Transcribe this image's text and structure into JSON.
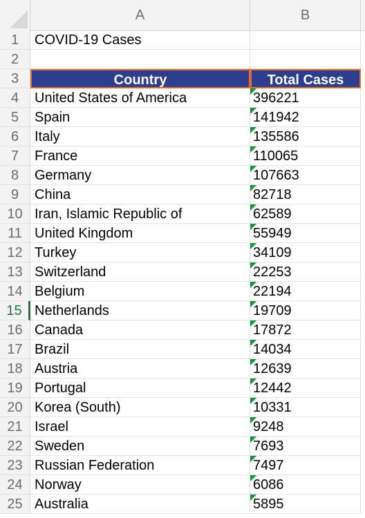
{
  "columns": [
    "A",
    "B"
  ],
  "rows": [
    {
      "num": "1",
      "a": "COVID-19 Cases",
      "b": ""
    },
    {
      "num": "2",
      "a": "",
      "b": ""
    },
    {
      "num": "3",
      "a": "Country",
      "b": "Total Cases",
      "header": true
    },
    {
      "num": "4",
      "a": "United States of America",
      "b": "396221"
    },
    {
      "num": "5",
      "a": "Spain",
      "b": "141942"
    },
    {
      "num": "6",
      "a": "Italy",
      "b": "135586"
    },
    {
      "num": "7",
      "a": "France",
      "b": "110065"
    },
    {
      "num": "8",
      "a": "Germany",
      "b": "107663"
    },
    {
      "num": "9",
      "a": "China",
      "b": "82718"
    },
    {
      "num": "10",
      "a": "Iran, Islamic Republic of",
      "b": "62589"
    },
    {
      "num": "11",
      "a": "United Kingdom",
      "b": "55949"
    },
    {
      "num": "12",
      "a": "Turkey",
      "b": "34109"
    },
    {
      "num": "13",
      "a": "Switzerland",
      "b": "22253"
    },
    {
      "num": "14",
      "a": "Belgium",
      "b": "22194"
    },
    {
      "num": "15",
      "a": "Netherlands",
      "b": "19709",
      "active": true
    },
    {
      "num": "16",
      "a": "Canada",
      "b": "17872"
    },
    {
      "num": "17",
      "a": "Brazil",
      "b": "14034"
    },
    {
      "num": "18",
      "a": "Austria",
      "b": "12639"
    },
    {
      "num": "19",
      "a": "Portugal",
      "b": "12442"
    },
    {
      "num": "20",
      "a": "Korea (South)",
      "b": "10331"
    },
    {
      "num": "21",
      "a": "Israel",
      "b": "9248"
    },
    {
      "num": "22",
      "a": "Sweden",
      "b": "7693"
    },
    {
      "num": "23",
      "a": "Russian Federation",
      "b": "7497"
    },
    {
      "num": "24",
      "a": "Norway",
      "b": "6086"
    },
    {
      "num": "25",
      "a": "Australia",
      "b": "5895"
    }
  ],
  "colors": {
    "header_fill": "#2c3f8f",
    "header_border": "#e46c2a",
    "text_as_number_flag": "#1e8f3a",
    "active_row_accent": "#217346"
  }
}
